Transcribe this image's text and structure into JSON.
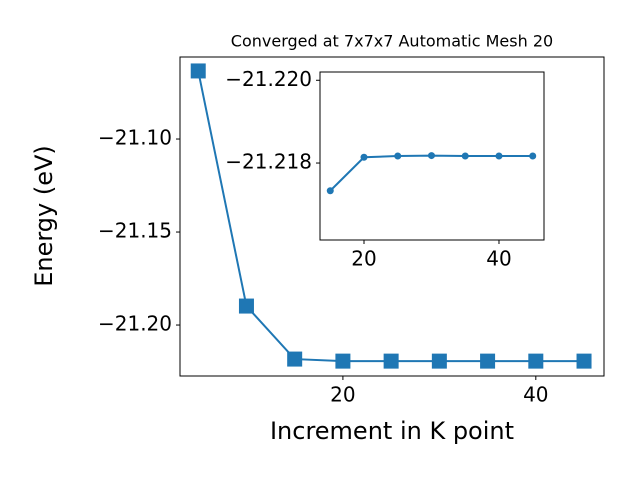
{
  "chart_data": [
    {
      "type": "line",
      "title": "Converged at 7x7x7 Automatic Mesh 20",
      "xlabel": "Increment in K point",
      "ylabel": "Energy (eV)",
      "x": [
        5,
        10,
        15,
        20,
        25,
        30,
        35,
        40,
        45
      ],
      "series": [
        {
          "color": "#1f77b4",
          "marker": "square",
          "values": [
            -21.0634,
            -21.1898,
            -21.2183,
            -21.2194,
            -21.2194,
            -21.2194,
            -21.2194,
            -21.2194,
            -21.2194
          ]
        }
      ],
      "xlim": [
        3.11,
        47.07
      ],
      "ylim": [
        -21.2274,
        -21.0559
      ],
      "xticks": [
        20,
        40
      ],
      "yticks": [
        {
          "value": -21.1,
          "label": "−21.10"
        },
        {
          "value": -21.15,
          "label": "−21.15"
        },
        {
          "value": -21.2,
          "label": "−21.20"
        }
      ]
    },
    {
      "type": "line",
      "x": [
        15,
        20,
        25,
        30,
        35,
        40,
        45
      ],
      "series": [
        {
          "color": "#1f77b4",
          "marker": "circle",
          "values": [
            -21.21733,
            -21.21814,
            -21.21817,
            -21.21818,
            -21.21817,
            -21.21817,
            -21.21817
          ]
        }
      ],
      "xlim": [
        13.48,
        46.67
      ],
      "ylim": [
        -21.21614,
        -21.2202
      ],
      "xticks": [
        20,
        40
      ],
      "yticks": [
        {
          "value": -21.22,
          "label": "−21.220"
        },
        {
          "value": -21.218,
          "label": "−21.218"
        }
      ]
    }
  ]
}
